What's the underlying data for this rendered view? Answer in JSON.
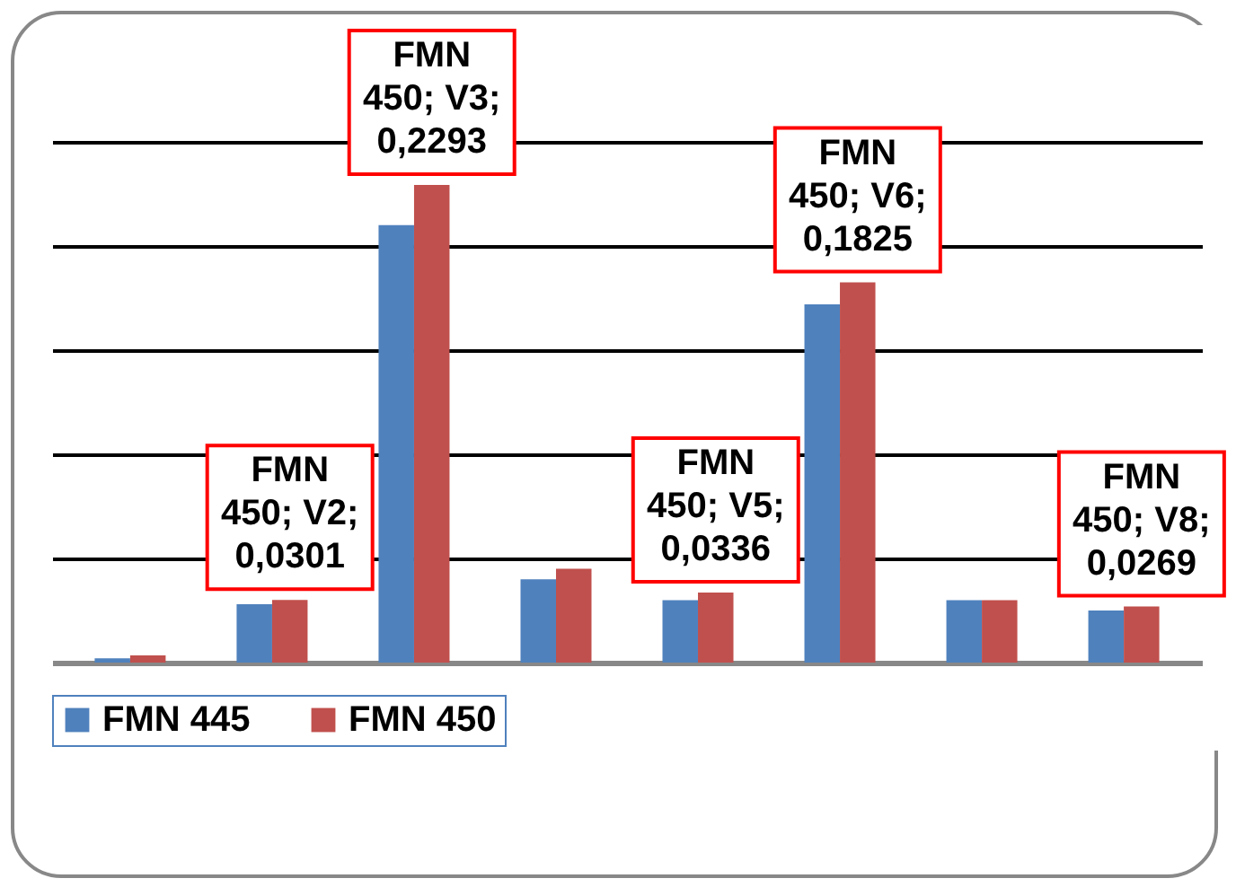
{
  "chart_data": {
    "type": "bar",
    "categories": [
      null,
      null,
      null,
      null,
      null,
      null,
      null,
      null
    ],
    "series": [
      {
        "name": "FMN 445",
        "color": "#4f81bd",
        "values": [
          0.002,
          0.028,
          0.21,
          0.04,
          0.03,
          0.172,
          0.03,
          0.025
        ]
      },
      {
        "name": "FMN 450",
        "color": "#c0504d",
        "values": [
          0.0035,
          0.0301,
          0.2293,
          0.045,
          0.0336,
          0.1825,
          0.03,
          0.0269
        ],
        "value_labels": [
          null,
          "FMN 450; V2; 0,0301",
          "FMN 450; V3; 0,2293",
          null,
          "FMN 450; V5; 0,0336",
          "FMN 450; V6; 0,1825",
          null,
          "FMN 450; V8; 0,0269"
        ]
      }
    ],
    "ylim": [
      0,
      0.25
    ],
    "yticks": [
      {
        "value": 0,
        "label": null
      },
      {
        "value": 0.05,
        "label": null
      },
      {
        "value": 0.1,
        "label": null
      },
      {
        "value": 0.15,
        "label": null
      },
      {
        "value": 0.2,
        "label": null
      },
      {
        "value": 0.25,
        "label": null
      }
    ],
    "tick_labels": false,
    "grid": "y",
    "legend": "bottom"
  }
}
